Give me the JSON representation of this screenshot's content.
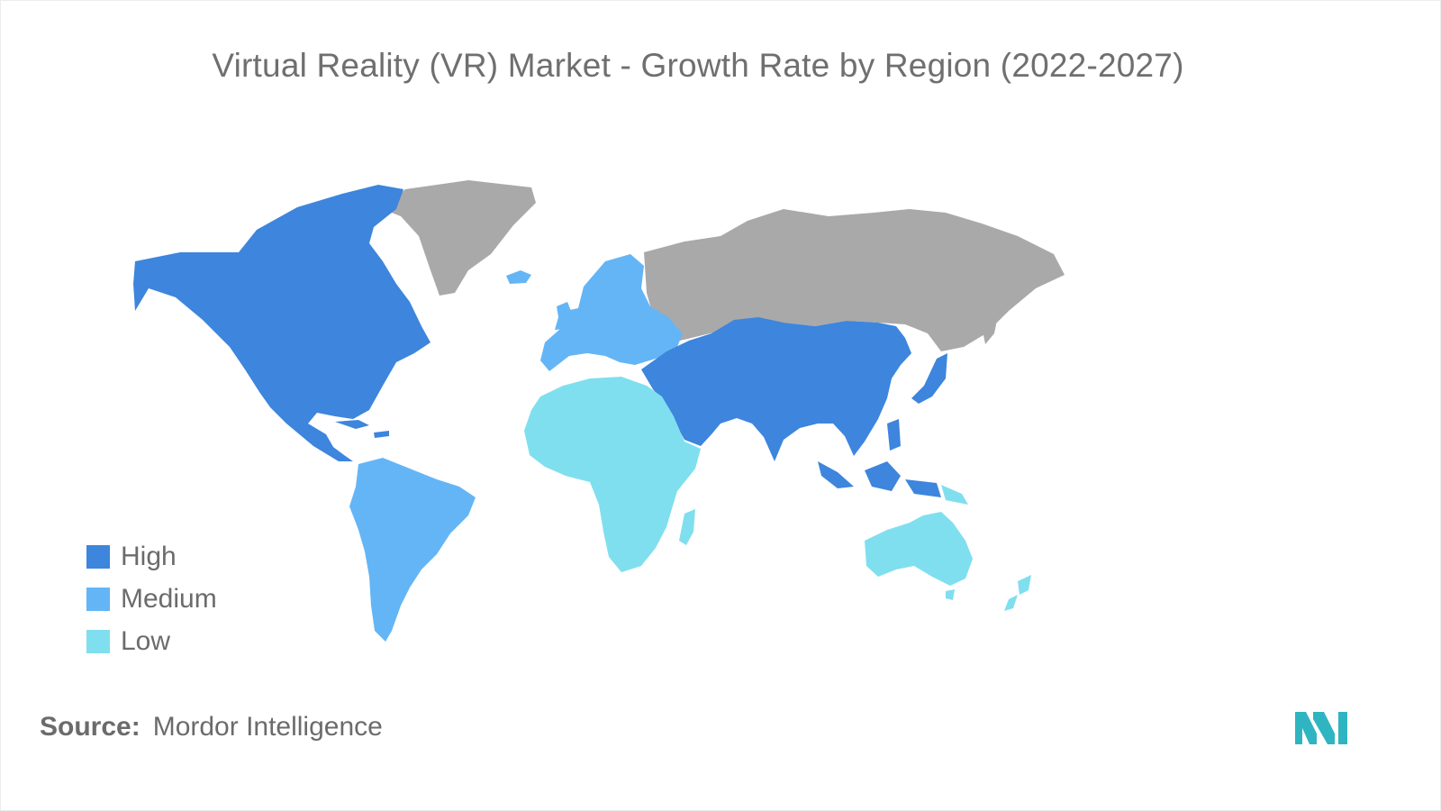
{
  "title": "Virtual Reality (VR) Market - Growth Rate by Region (2022-2027)",
  "colors": {
    "high": "#3d85dd",
    "medium": "#64b5f6",
    "low": "#7fdfef",
    "no_data": "#a9a9a9",
    "logo": "#2fb5c2"
  },
  "legend": [
    {
      "label": "High",
      "level": "high"
    },
    {
      "label": "Medium",
      "level": "medium"
    },
    {
      "label": "Low",
      "level": "low"
    }
  ],
  "regions": [
    {
      "name": "North America",
      "level": "high"
    },
    {
      "name": "Asia-Pacific",
      "level": "high"
    },
    {
      "name": "Middle East",
      "level": "high"
    },
    {
      "name": "Europe",
      "level": "medium"
    },
    {
      "name": "South America",
      "level": "medium"
    },
    {
      "name": "Africa",
      "level": "low"
    },
    {
      "name": "Australia and New Zealand",
      "level": "low"
    },
    {
      "name": "Russia and Greenland",
      "level": "no_data"
    }
  ],
  "source": {
    "label": "Source:",
    "text": "Mordor Intelligence"
  },
  "logo_icon": "mordor-intelligence-logo"
}
